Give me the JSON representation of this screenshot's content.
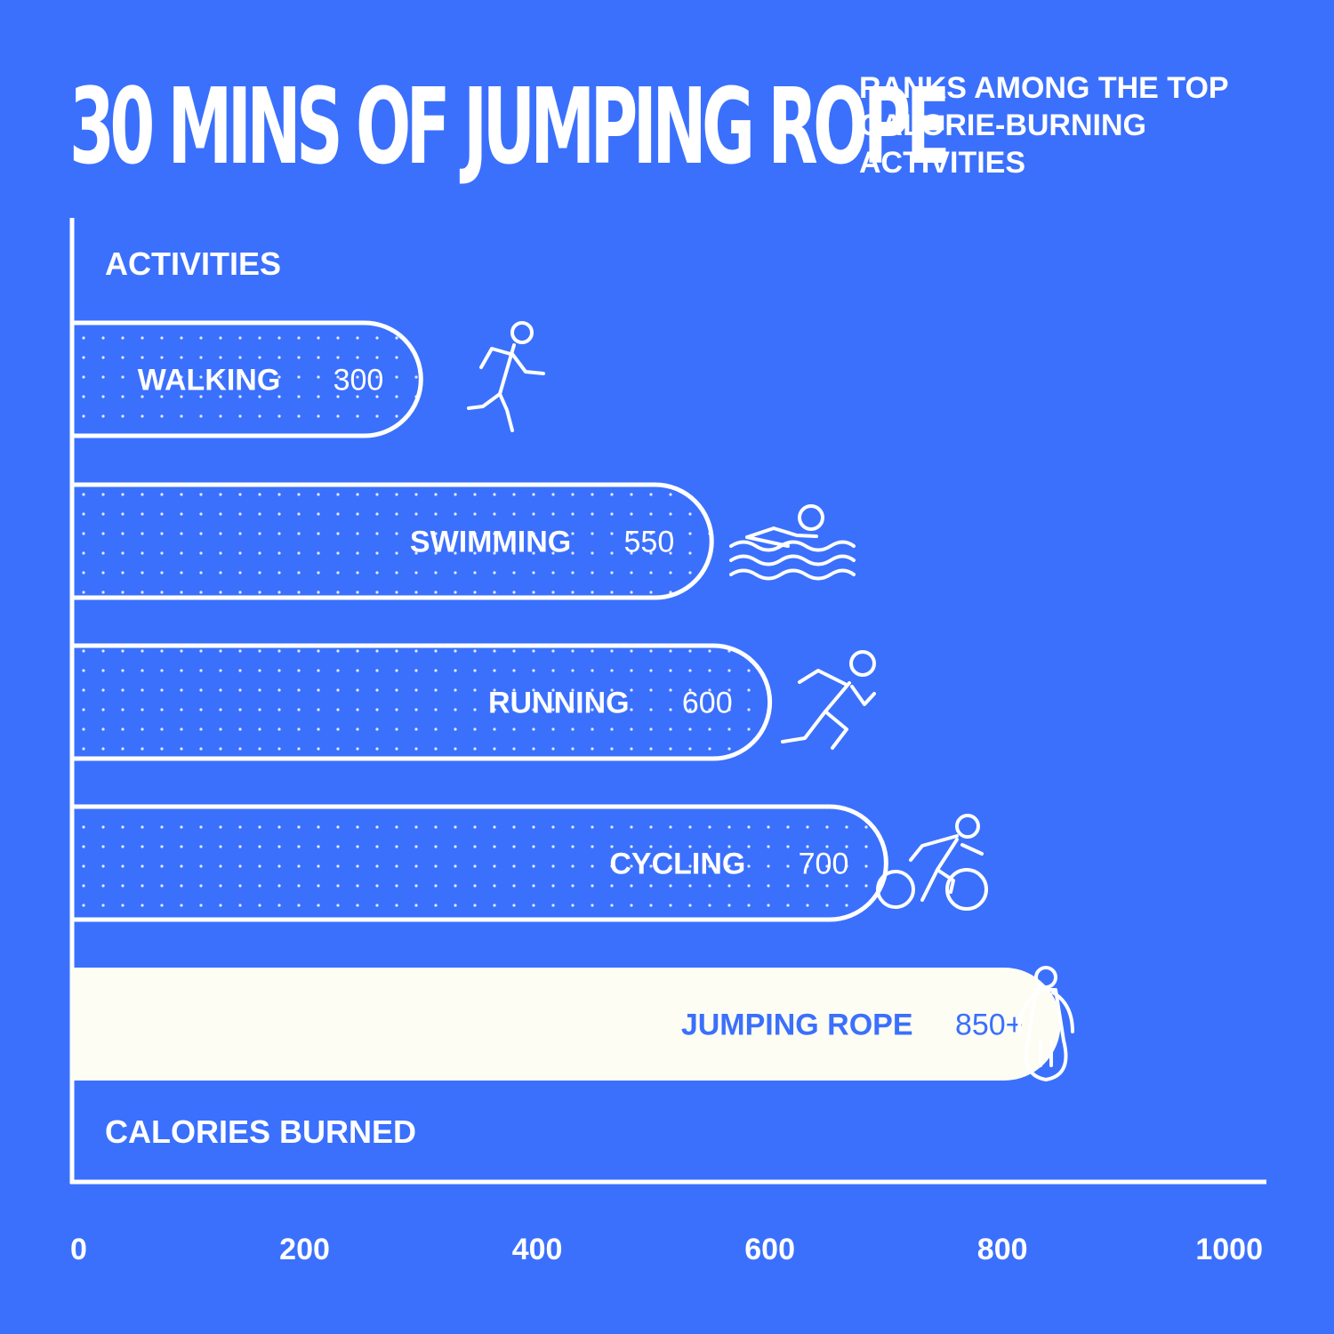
{
  "header": {
    "title": "30 MINS OF JUMPING ROPE",
    "subtitle_lines": [
      "RANKS AMONG THE TOP",
      "CALORIE-BURNING",
      "ACTIVITIES"
    ]
  },
  "colors": {
    "background": "#3b70fd",
    "bar_fill": "#3b70fd",
    "bar_outline": "#ffffff",
    "highlight_fill": "#fefdf3",
    "highlight_text": "#3b70fd",
    "text": "#ffffff"
  },
  "chart_data": {
    "type": "bar",
    "orientation": "horizontal",
    "title": "30 MINS OF JUMPING ROPE",
    "subtitle": "RANKS AMONG THE TOP CALORIE-BURNING ACTIVITIES",
    "ylabel": "ACTIVITIES",
    "xlabel": "CALORIES BURNED",
    "xlim": [
      0,
      1000
    ],
    "xticks": [
      "0",
      "200",
      "400",
      "600",
      "800",
      "1000"
    ],
    "grid": false,
    "categories": [
      "WALKING",
      "SWIMMING",
      "RUNNING",
      "CYCLING",
      "JUMPING ROPE"
    ],
    "values": [
      300,
      550,
      600,
      700,
      850
    ],
    "value_labels": [
      "300",
      "550",
      "600",
      "700",
      "850+"
    ],
    "icons": [
      "walking-icon",
      "swimming-icon",
      "running-icon",
      "cycling-icon",
      "jump-rope-icon"
    ],
    "highlight": "JUMPING ROPE"
  }
}
